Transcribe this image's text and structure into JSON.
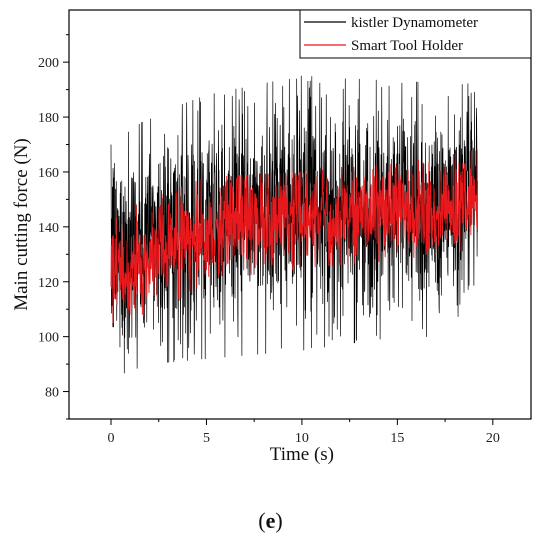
{
  "chart_data": {
    "type": "line",
    "xlabel": "Time (s)",
    "ylabel": "Main cutting force (N)",
    "xlim": [
      -2.2,
      22
    ],
    "ylim": [
      70,
      219
    ],
    "xticks": [
      0,
      5,
      10,
      15,
      20
    ],
    "yticks": [
      80,
      100,
      120,
      140,
      160,
      180,
      200
    ],
    "grid": false,
    "legend_position": "top-right",
    "series": [
      {
        "name": "kistler Dynamometer",
        "color": "#000000",
        "x_start": 0,
        "x_end": 19.2,
        "trend": [
          [
            0,
            130
          ],
          [
            1,
            132
          ],
          [
            2,
            135
          ],
          [
            4,
            140
          ],
          [
            6,
            142
          ],
          [
            8,
            145
          ],
          [
            10,
            146
          ],
          [
            12,
            147
          ],
          [
            14,
            147
          ],
          [
            16,
            148
          ],
          [
            18,
            150
          ],
          [
            19.2,
            152
          ]
        ],
        "band_range": [
          [
            0,
            85,
            170
          ],
          [
            2,
            90,
            180
          ],
          [
            5,
            92,
            188
          ],
          [
            10,
            95,
            195
          ],
          [
            15,
            100,
            193
          ],
          [
            19.2,
            100,
            192
          ]
        ]
      },
      {
        "name": "Smart Tool Holder",
        "color": "#e8191c",
        "x_start": 0,
        "x_end": 19.2,
        "trend": [
          [
            0,
            125
          ],
          [
            1,
            122
          ],
          [
            2,
            128
          ],
          [
            4,
            136
          ],
          [
            6,
            140
          ],
          [
            8,
            143
          ],
          [
            10,
            144
          ],
          [
            12,
            145
          ],
          [
            14,
            145
          ],
          [
            16,
            146
          ],
          [
            18,
            148
          ],
          [
            19.2,
            150
          ]
        ],
        "band_range": [
          [
            0,
            105,
            145
          ],
          [
            2,
            108,
            150
          ],
          [
            5,
            118,
            158
          ],
          [
            10,
            125,
            160
          ],
          [
            15,
            128,
            163
          ],
          [
            19.2,
            132,
            168
          ]
        ]
      }
    ]
  },
  "caption": {
    "open": "(",
    "letter": "e",
    "close": ")"
  }
}
